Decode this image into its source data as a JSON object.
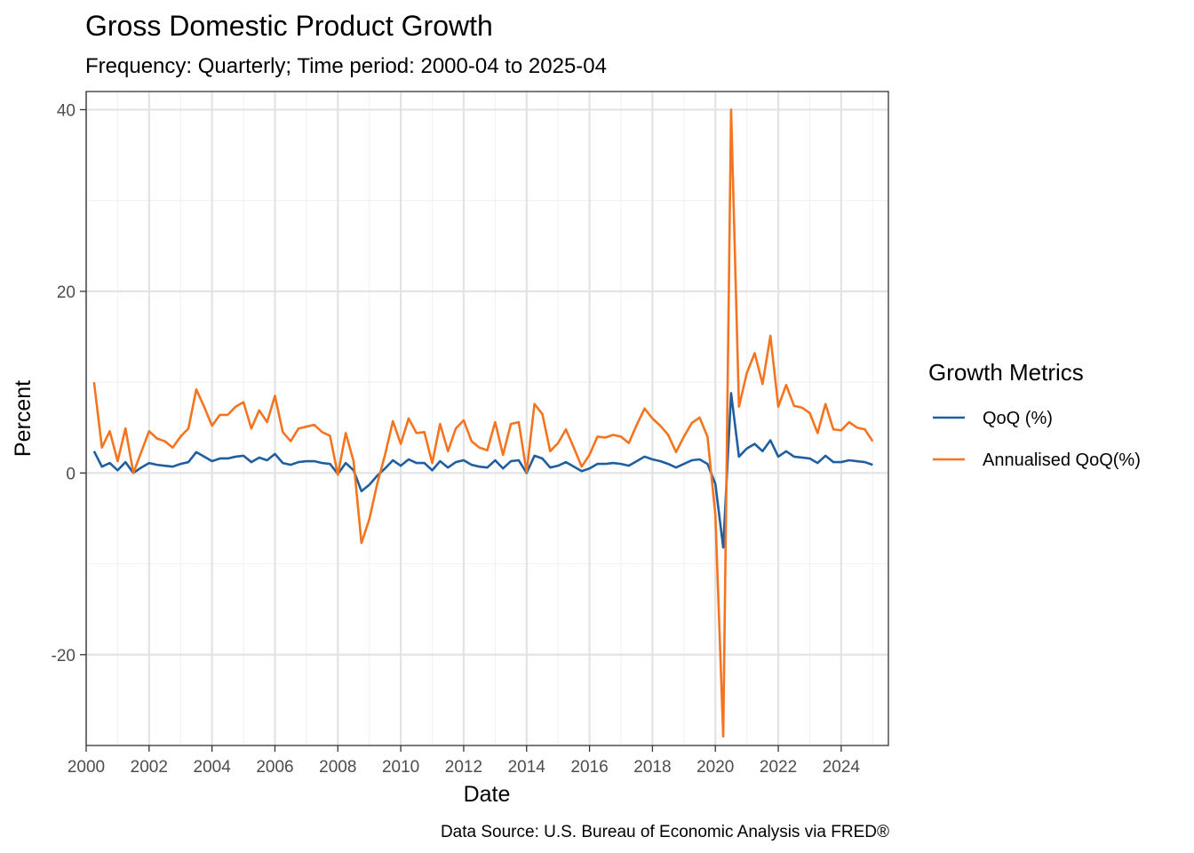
{
  "chart_data": {
    "type": "line",
    "title": "Gross Domestic Product Growth",
    "subtitle": "Frequency: Quarterly; Time period: 2000-04 to 2025-04",
    "xlabel": "Date",
    "ylabel": "Percent",
    "caption": "Data Source: U.S. Bureau of Economic Analysis via FRED®",
    "xlim": [
      2000,
      2025.5
    ],
    "ylim": [
      -30,
      42
    ],
    "x_ticks": [
      2000,
      2002,
      2004,
      2006,
      2008,
      2010,
      2012,
      2014,
      2016,
      2018,
      2020,
      2022,
      2024
    ],
    "x_tick_labels": [
      "2000",
      "2002",
      "2004",
      "2006",
      "2008",
      "2010",
      "2012",
      "2014",
      "2016",
      "2018",
      "2020",
      "2022",
      "2024"
    ],
    "y_ticks": [
      -20,
      0,
      20,
      40
    ],
    "y_tick_labels": [
      "-20",
      "0",
      "20",
      "40"
    ],
    "grid": true,
    "legend": {
      "title": "Growth Metrics",
      "position": "right"
    },
    "x_start": "2000-04",
    "x_end": "2025-04",
    "series": [
      {
        "name": "QoQ (%)",
        "color": "#1f5fa0",
        "values": [
          2.4,
          0.7,
          1.1,
          0.3,
          1.2,
          0.0,
          0.6,
          1.1,
          0.9,
          0.8,
          0.7,
          1.0,
          1.2,
          2.3,
          1.8,
          1.3,
          1.6,
          1.6,
          1.8,
          1.9,
          1.2,
          1.7,
          1.4,
          2.1,
          1.1,
          0.9,
          1.2,
          1.3,
          1.3,
          1.1,
          1.0,
          -0.1,
          1.1,
          0.3,
          -2.0,
          -1.3,
          -0.3,
          0.5,
          1.4,
          0.8,
          1.5,
          1.1,
          1.1,
          0.3,
          1.3,
          0.6,
          1.2,
          1.4,
          0.9,
          0.7,
          0.6,
          1.4,
          0.5,
          1.3,
          1.4,
          0.0,
          1.9,
          1.6,
          0.6,
          0.8,
          1.2,
          0.7,
          0.2,
          0.5,
          1.0,
          1.0,
          1.1,
          1.0,
          0.8,
          1.3,
          1.8,
          1.5,
          1.3,
          1.0,
          0.6,
          1.0,
          1.4,
          1.5,
          1.0,
          -1.2,
          -8.2,
          8.8,
          1.8,
          2.7,
          3.2,
          2.4,
          3.6,
          1.8,
          2.4,
          1.8,
          1.7,
          1.6,
          1.1,
          1.9,
          1.2,
          1.2,
          1.4,
          1.3,
          1.2,
          0.9
        ]
      },
      {
        "name": "Annualised QoQ(%)",
        "color": "#f5741f",
        "values": [
          10.0,
          2.8,
          4.6,
          1.3,
          4.9,
          0.0,
          2.3,
          4.6,
          3.8,
          3.5,
          2.8,
          4.0,
          4.9,
          9.2,
          7.3,
          5.2,
          6.4,
          6.4,
          7.3,
          7.8,
          4.9,
          6.9,
          5.6,
          8.5,
          4.5,
          3.5,
          4.9,
          5.1,
          5.3,
          4.5,
          4.1,
          -0.2,
          4.4,
          1.3,
          -7.7,
          -5.1,
          -1.2,
          2.0,
          5.7,
          3.2,
          6.0,
          4.4,
          4.5,
          1.1,
          5.4,
          2.4,
          4.9,
          5.8,
          3.5,
          2.8,
          2.5,
          5.6,
          2.0,
          5.4,
          5.6,
          0.1,
          7.6,
          6.5,
          2.4,
          3.3,
          4.8,
          2.8,
          0.7,
          2.0,
          4.0,
          3.9,
          4.2,
          4.0,
          3.3,
          5.3,
          7.1,
          6.0,
          5.2,
          4.2,
          2.3,
          4.0,
          5.5,
          6.1,
          4.0,
          -4.6,
          -29.0,
          40.0,
          7.3,
          11.0,
          13.2,
          9.8,
          15.1,
          7.3,
          9.7,
          7.4,
          7.2,
          6.6,
          4.4,
          7.6,
          4.8,
          4.7,
          5.6,
          5.0,
          4.8,
          3.5
        ]
      }
    ]
  }
}
